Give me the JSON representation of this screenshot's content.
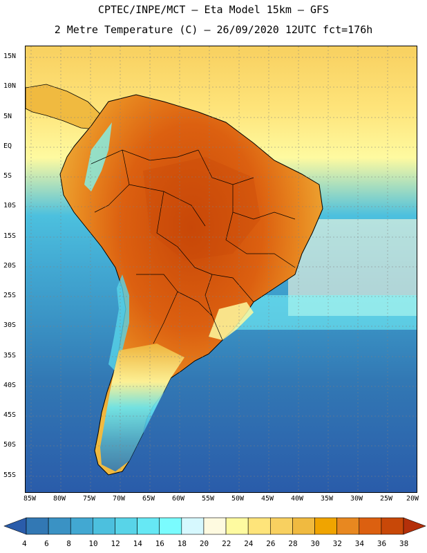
{
  "title": {
    "line1": "CPTEC/INPE/MCT –  Eta Model 15km – GFS",
    "line2": "2 Metre Temperature (C) – 26/09/2020 12UTC fct=176h"
  },
  "map": {
    "latitude_labels": [
      "15N",
      "10N",
      "5N",
      "EQ",
      "5S",
      "10S",
      "15S",
      "20S",
      "25S",
      "30S",
      "35S",
      "40S",
      "45S",
      "50S",
      "55S"
    ],
    "longitude_labels": [
      "85W",
      "80W",
      "75W",
      "70W",
      "65W",
      "60W",
      "55W",
      "50W",
      "45W",
      "40W",
      "35W",
      "30W",
      "25W",
      "20W"
    ],
    "ocean_color": "#2f62a6",
    "land_hot_color": "#c8501a",
    "land_warm_color": "#f0b43c"
  },
  "colorbar": {
    "labels": [
      "4",
      "6",
      "8",
      "10",
      "12",
      "14",
      "16",
      "18",
      "20",
      "22",
      "24",
      "26",
      "28",
      "30",
      "32",
      "34",
      "36",
      "38"
    ],
    "colors": [
      "#2a5caa",
      "#3278b4",
      "#3a92c4",
      "#42a8d2",
      "#4cc0de",
      "#58d4e8",
      "#66e8f4",
      "#7afcfe",
      "#d6f8fe",
      "#fefae0",
      "#fefaa0",
      "#fee47a",
      "#f8d060",
      "#f0ba40",
      "#f0a400",
      "#e88820",
      "#dc6010",
      "#c84808",
      "#b4300a"
    ]
  }
}
